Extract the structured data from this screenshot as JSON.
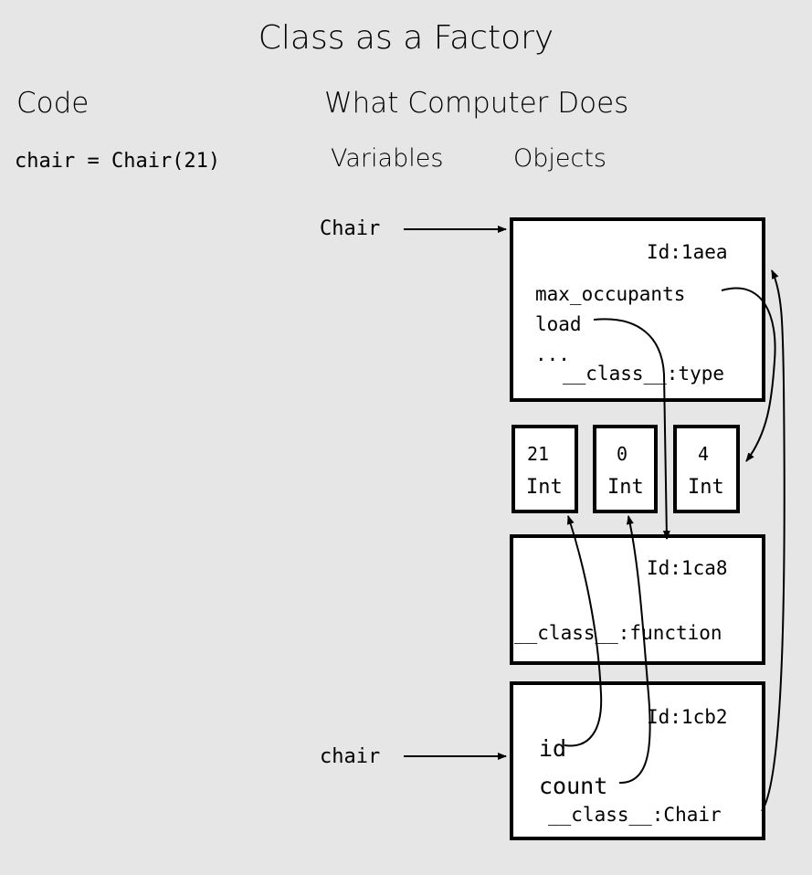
{
  "title": "Class as a Factory",
  "headings": {
    "code": "Code",
    "computer": "What Computer Does",
    "variables": "Variables",
    "objects": "Objects"
  },
  "code_line": "chair = Chair(21)",
  "variables": {
    "chair_class": "Chair",
    "chair_instance": "chair"
  },
  "objects": {
    "class_obj": {
      "id": "Id:1aea",
      "attr1": "max_occupants",
      "attr2": "load",
      "ellipsis": "...",
      "class": "__class__:type"
    },
    "int_21": {
      "value": "21",
      "type": "Int"
    },
    "int_0": {
      "value": "0",
      "type": "Int"
    },
    "int_4": {
      "value": "4",
      "type": "Int"
    },
    "function_obj": {
      "id": "Id:1ca8",
      "class": "__class__:function"
    },
    "instance_obj": {
      "id": "Id:1cb2",
      "attr1": "id",
      "attr2": "count",
      "class": "__class__:Chair"
    }
  },
  "colors": {
    "background": "#e6e6e6",
    "box_fill": "#ffffff",
    "ink": "#000000"
  }
}
